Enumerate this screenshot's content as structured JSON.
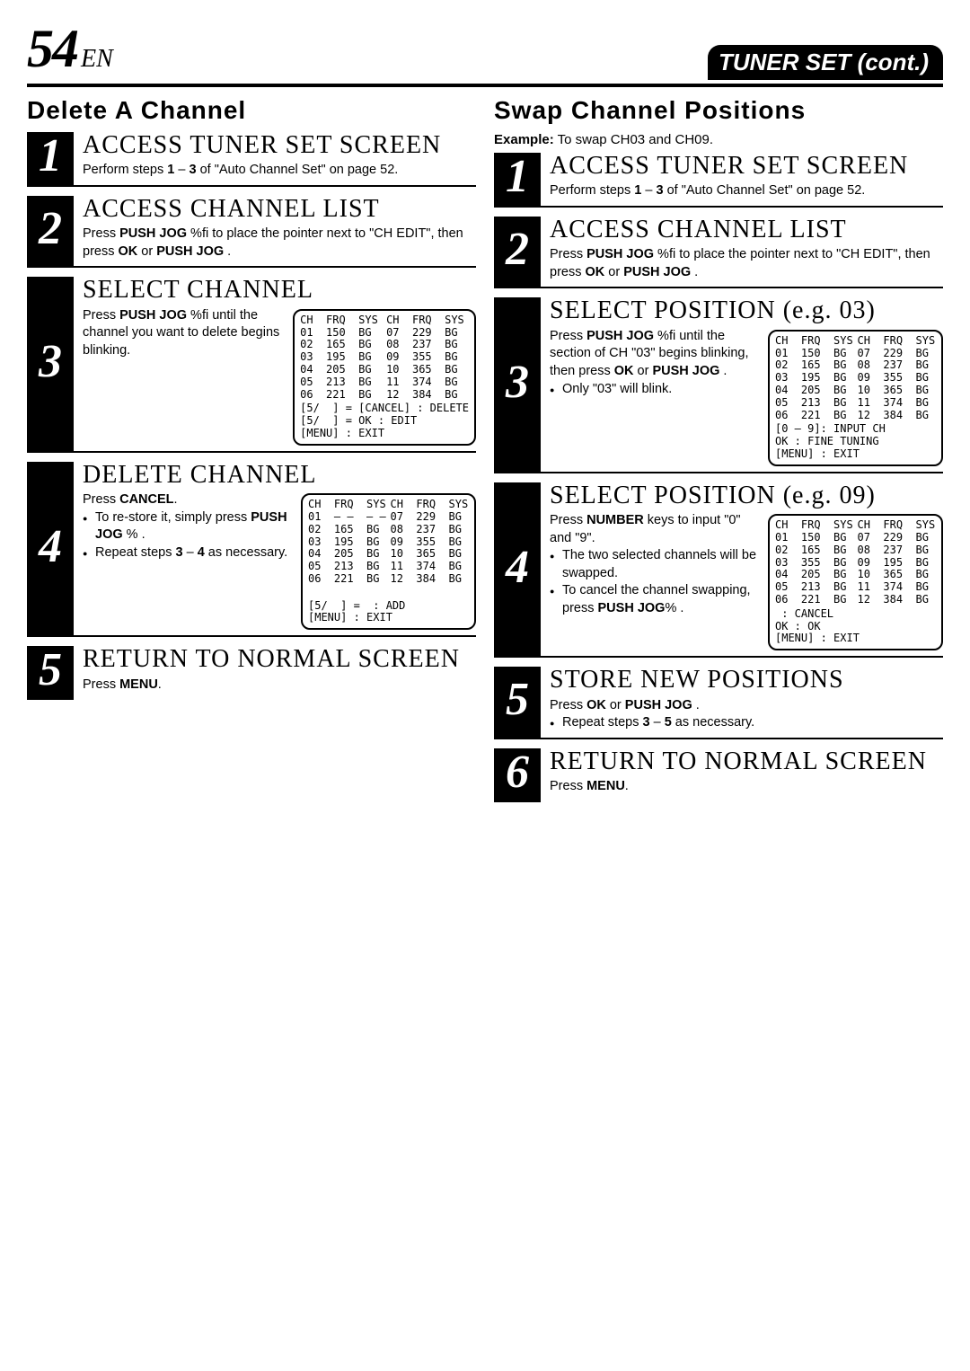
{
  "header": {
    "page": "54",
    "lang": "EN",
    "title": "TUNER SET (cont.)"
  },
  "left": {
    "title": "Delete A Channel",
    "steps": [
      {
        "n": "1",
        "title": "ACCESS TUNER SET SCREEN",
        "text": "Perform steps 1 – 3 of \"Auto Channel Set\" on page 52."
      },
      {
        "n": "2",
        "title": "ACCESS CHANNEL LIST",
        "text": "Press PUSH JOG %fi to place the pointer next to \"CH EDIT\", then press OK or PUSH JOG ."
      },
      {
        "n": "3",
        "title": "SELECT CHANNEL",
        "text": "Press PUSH JOG %fi until the channel you want to delete begins blinking.",
        "osd": "sel1"
      },
      {
        "n": "4",
        "title": "DELETE CHANNEL",
        "text": "Press CANCEL.",
        "bullets": [
          "To re-store it, simply press PUSH JOG % .",
          "Repeat steps 3 – 4 as necessary."
        ],
        "osd": "del"
      },
      {
        "n": "5",
        "title": "RETURN TO NORMAL SCREEN",
        "text": "Press MENU."
      }
    ]
  },
  "right": {
    "title": "Swap Channel Positions",
    "example": "Example: To swap CH03 and CH09.",
    "steps": [
      {
        "n": "1",
        "title": "ACCESS TUNER SET SCREEN",
        "text": "Perform steps 1 – 3 of \"Auto Channel Set\" on page 52."
      },
      {
        "n": "2",
        "title": "ACCESS CHANNEL LIST",
        "text": "Press PUSH JOG %fi to place the pointer next to \"CH EDIT\", then press OK or PUSH JOG ."
      },
      {
        "n": "3",
        "title": "SELECT POSITION (e.g. 03)",
        "text": "Press PUSH JOG %fi until the section of CH \"03\" begins blinking, then press OK or PUSH JOG .",
        "bullets": [
          "Only \"03\" will blink."
        ],
        "osd": "swap1"
      },
      {
        "n": "4",
        "title": "SELECT POSITION (e.g. 09)",
        "text": "Press NUMBER keys to input \"0\" and \"9\".",
        "bullets": [
          "The two selected channels will be swapped.",
          "To cancel the channel swapping, press PUSH JOG% ."
        ],
        "osd": "swap2"
      },
      {
        "n": "5",
        "title": "STORE NEW POSITIONS",
        "text": "Press OK or PUSH JOG .",
        "bullets": [
          "Repeat steps 3 – 5 as necessary."
        ]
      },
      {
        "n": "6",
        "title": "RETURN TO NORMAL SCREEN",
        "text": "Press MENU."
      }
    ]
  },
  "osd": {
    "headers": [
      "CH",
      "FRQ",
      "SYS",
      "CH",
      "FRQ",
      "SYS"
    ],
    "sel1": {
      "left": [
        [
          "01",
          "150",
          "BG"
        ],
        [
          "02",
          "165",
          "BG"
        ],
        [
          "03",
          "195",
          "BG"
        ],
        [
          "04",
          "205",
          "BG"
        ],
        [
          "05",
          "213",
          "BG"
        ],
        [
          "06",
          "221",
          "BG"
        ]
      ],
      "right": [
        [
          "07",
          "229",
          "BG"
        ],
        [
          "08",
          "237",
          "BG"
        ],
        [
          "09",
          "355",
          "BG"
        ],
        [
          "10",
          "365",
          "BG"
        ],
        [
          "11",
          "374",
          "BG"
        ],
        [
          "12",
          "384",
          "BG"
        ]
      ],
      "foot": [
        "[5/  ] = [CANCEL] : DELETE",
        "[5/  ] = OK : EDIT",
        "[MENU] : EXIT"
      ]
    },
    "del": {
      "left": [
        [
          "01",
          "– –",
          "– –"
        ],
        [
          "02",
          "165",
          "BG"
        ],
        [
          "03",
          "195",
          "BG"
        ],
        [
          "04",
          "205",
          "BG"
        ],
        [
          "05",
          "213",
          "BG"
        ],
        [
          "06",
          "221",
          "BG"
        ]
      ],
      "right": [
        [
          "07",
          "229",
          "BG"
        ],
        [
          "08",
          "237",
          "BG"
        ],
        [
          "09",
          "355",
          "BG"
        ],
        [
          "10",
          "365",
          "BG"
        ],
        [
          "11",
          "374",
          "BG"
        ],
        [
          "12",
          "384",
          "BG"
        ]
      ],
      "foot": [
        "",
        "[5/  ] =  : ADD",
        "[MENU] : EXIT"
      ]
    },
    "swap1": {
      "left": [
        [
          "01",
          "150",
          "BG"
        ],
        [
          "02",
          "165",
          "BG"
        ],
        [
          "03",
          "195",
          "BG"
        ],
        [
          "04",
          "205",
          "BG"
        ],
        [
          "05",
          "213",
          "BG"
        ],
        [
          "06",
          "221",
          "BG"
        ]
      ],
      "right": [
        [
          "07",
          "229",
          "BG"
        ],
        [
          "08",
          "237",
          "BG"
        ],
        [
          "09",
          "355",
          "BG"
        ],
        [
          "10",
          "365",
          "BG"
        ],
        [
          "11",
          "374",
          "BG"
        ],
        [
          "12",
          "384",
          "BG"
        ]
      ],
      "foot": [
        "[0 — 9]: INPUT CH",
        "OK : FINE TUNING",
        "[MENU] : EXIT"
      ]
    },
    "swap2": {
      "left": [
        [
          "01",
          "150",
          "BG"
        ],
        [
          "02",
          "165",
          "BG"
        ],
        [
          "03",
          "355",
          "BG"
        ],
        [
          "04",
          "205",
          "BG"
        ],
        [
          "05",
          "213",
          "BG"
        ],
        [
          "06",
          "221",
          "BG"
        ]
      ],
      "right": [
        [
          "07",
          "229",
          "BG"
        ],
        [
          "08",
          "237",
          "BG"
        ],
        [
          "09",
          "195",
          "BG"
        ],
        [
          "10",
          "365",
          "BG"
        ],
        [
          "11",
          "374",
          "BG"
        ],
        [
          "12",
          "384",
          "BG"
        ]
      ],
      "foot": [
        " : CANCEL",
        "OK : OK",
        "[MENU] : EXIT"
      ]
    }
  }
}
